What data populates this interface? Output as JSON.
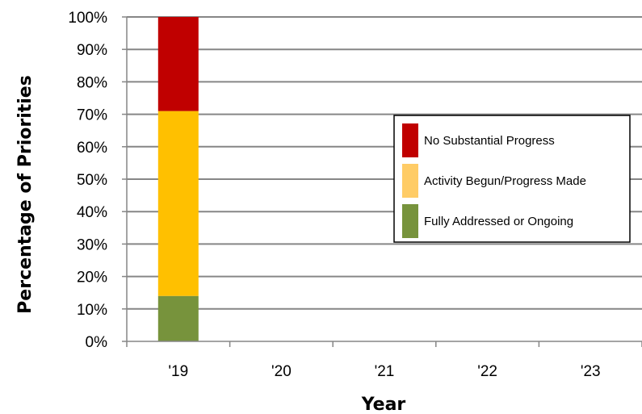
{
  "chart_data": {
    "type": "bar",
    "stacked": true,
    "categories": [
      "'19",
      "'20",
      "'21",
      "'22",
      "'23"
    ],
    "series": [
      {
        "name": "Fully Addressed or Ongoing",
        "color": "#77933c",
        "values": [
          14,
          null,
          null,
          null,
          null
        ]
      },
      {
        "name": "Activity Begun/Progress Made",
        "color": "#ffc000",
        "values": [
          57,
          null,
          null,
          null,
          null
        ]
      },
      {
        "name": "No Substantial Progress",
        "color": "#c00000",
        "values": [
          29,
          null,
          null,
          null,
          null
        ]
      }
    ],
    "title": "",
    "xlabel": "Year",
    "ylabel": "Percentage of Priorities",
    "ylim": [
      0,
      100
    ],
    "yticks": [
      "0%",
      "10%",
      "20%",
      "30%",
      "40%",
      "50%",
      "60%",
      "70%",
      "80%",
      "90%",
      "100%"
    ],
    "grid": true,
    "legend": {
      "placement": "right",
      "entries": [
        {
          "label": "No Substantial Progress",
          "color": "#c00000"
        },
        {
          "label": "Activity Begun/Progress Made",
          "color": "#ffcc66"
        },
        {
          "label": "Fully Addressed or Ongoing",
          "color": "#77933c"
        }
      ]
    }
  }
}
